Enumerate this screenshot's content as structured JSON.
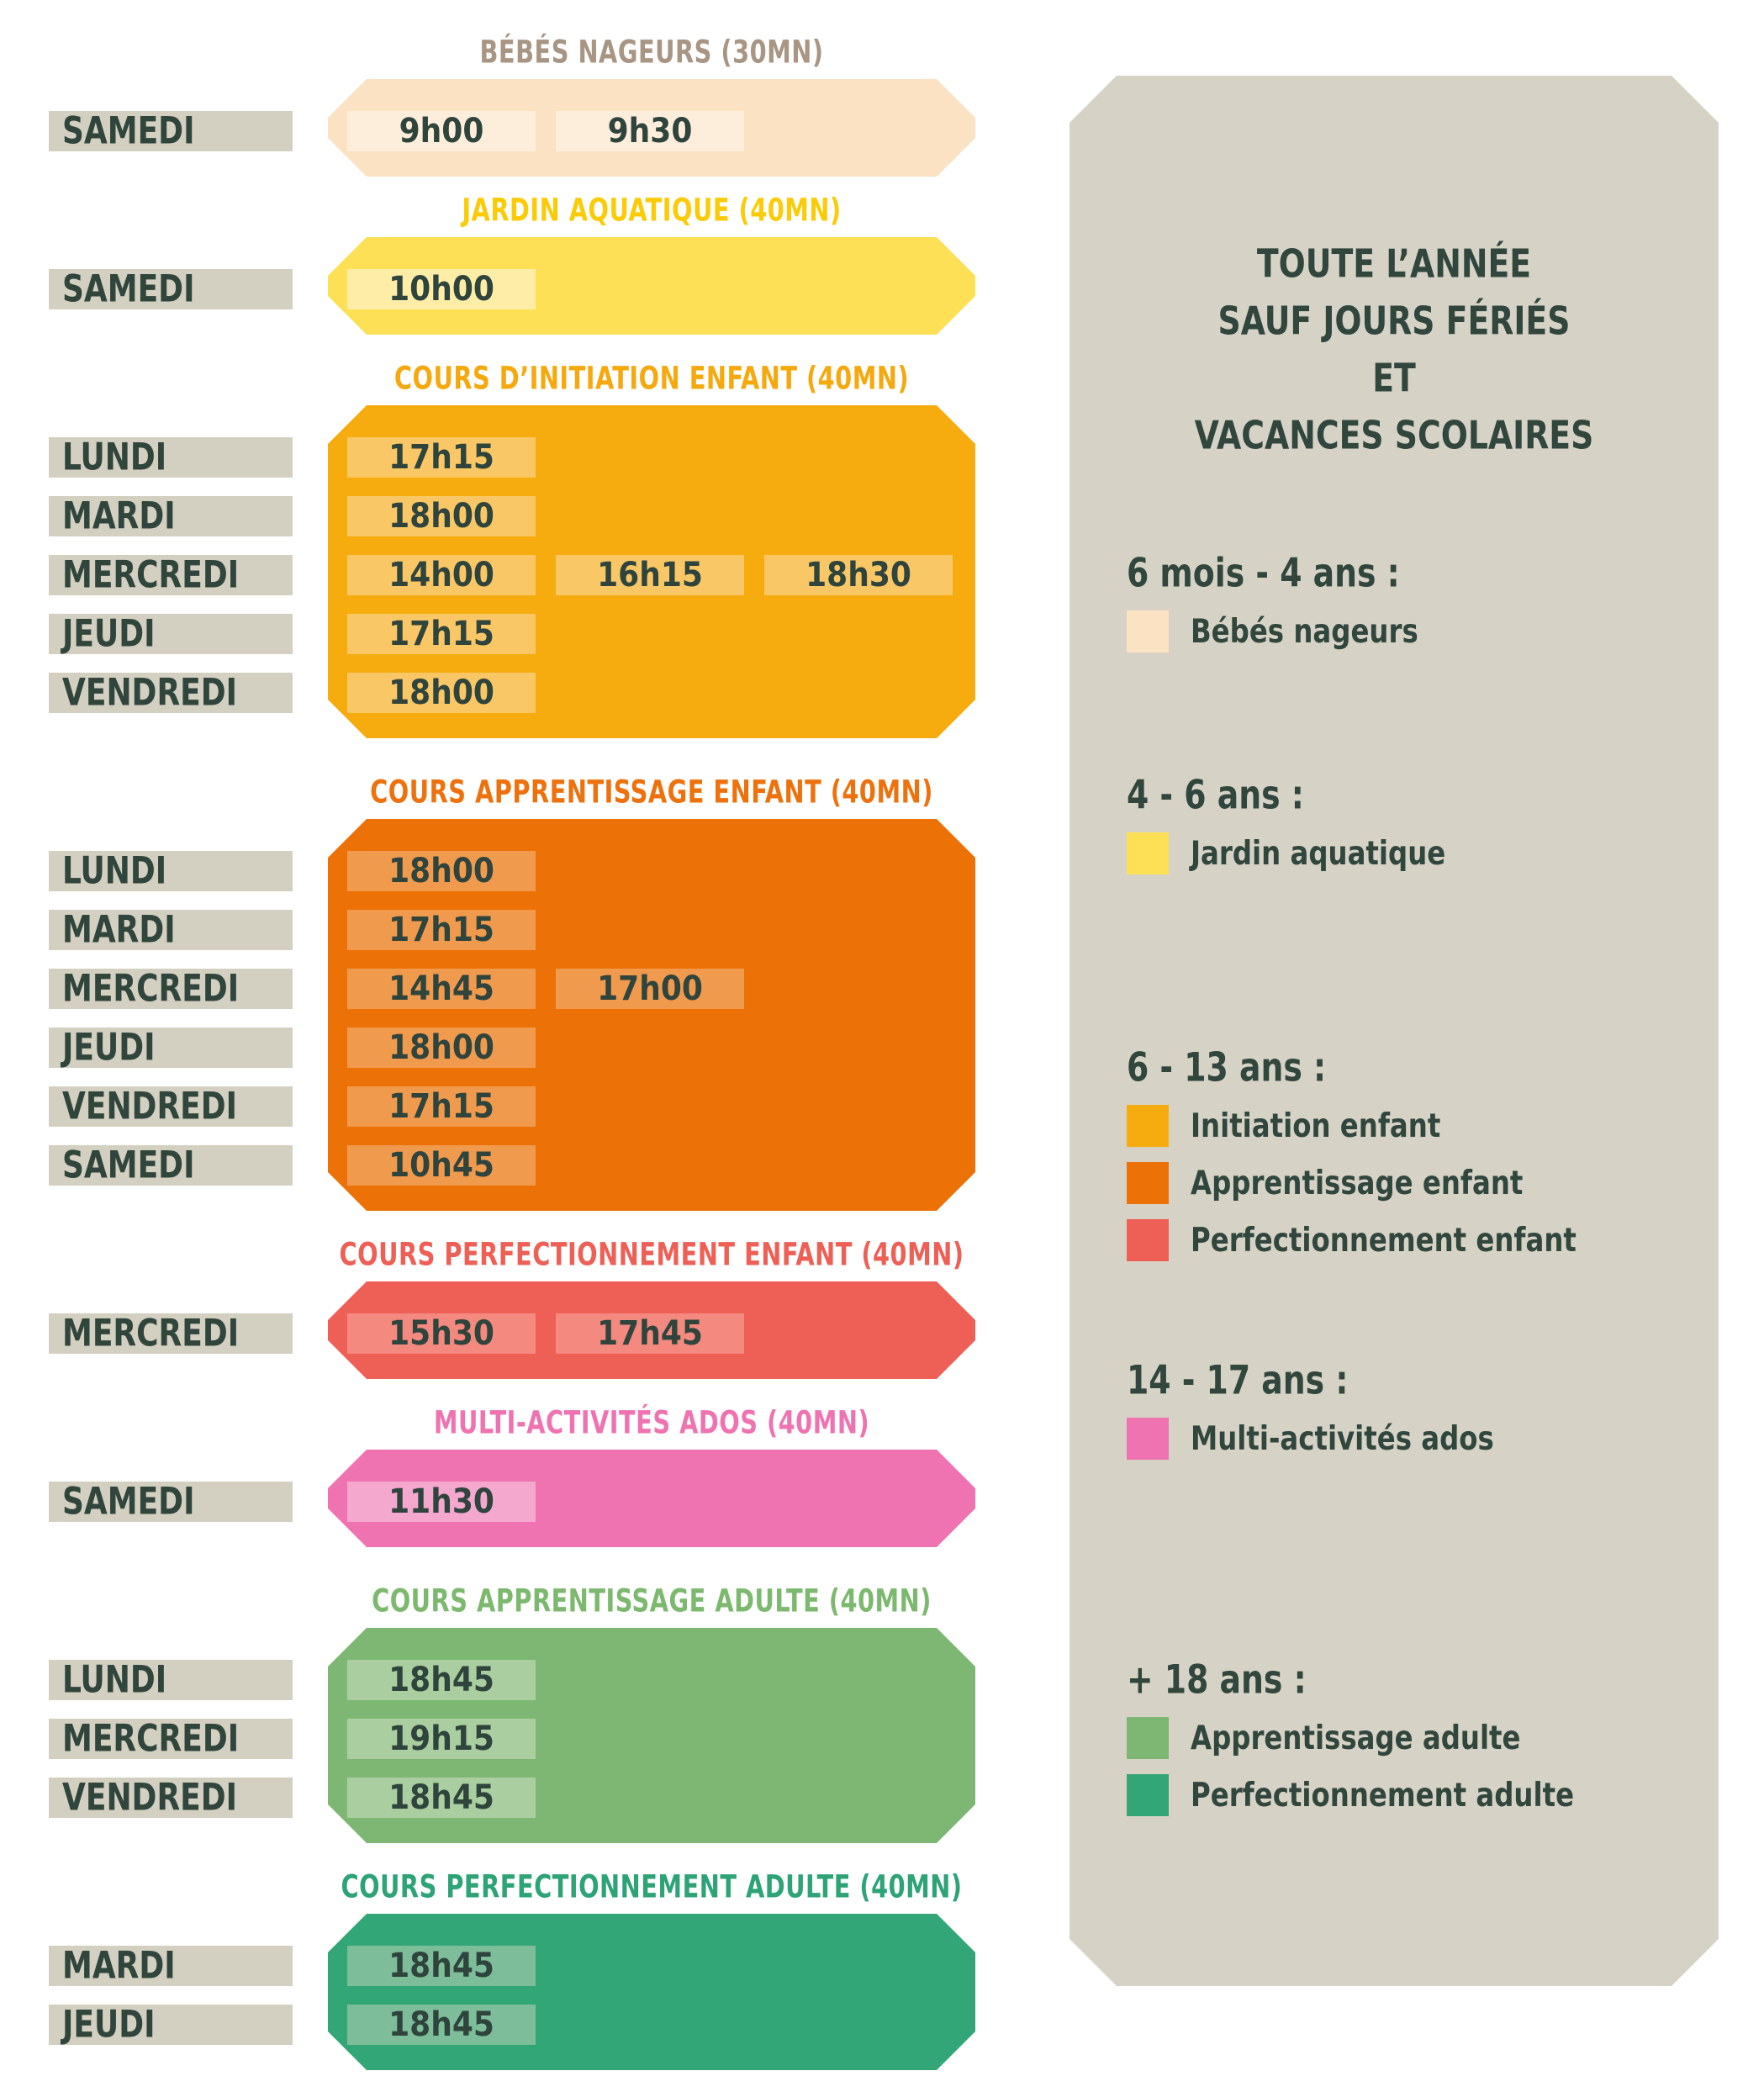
{
  "colors": {
    "page_background": "#FFFFFF",
    "dark_text": "#31463D",
    "day_label_background": "#D3CFC1",
    "panel_background": "#D6D3C6"
  },
  "sections": [
    {
      "id": "bebes-nageurs",
      "title": "BÉBÉS NAGEURS (30MN)",
      "title_color": "#A89584",
      "block_color": "#FBE2C3",
      "chip_color": "#FDEEDC",
      "rows": [
        {
          "day": "SAMEDI",
          "times": [
            "9h00",
            "9h30"
          ]
        }
      ]
    },
    {
      "id": "jardin-aquatique",
      "title": "JARDIN AQUATIQUE (40MN)",
      "title_color": "#FBCB08",
      "block_color": "#FDE055",
      "chip_color": "#FEEDA6",
      "rows": [
        {
          "day": "SAMEDI",
          "times": [
            "10h00"
          ]
        }
      ]
    },
    {
      "id": "initiation-enfant",
      "title": "COURS D’INITIATION ENFANT (40MN)",
      "title_color": "#F5A90E",
      "block_color": "#F6AC0E",
      "chip_color": "#F9C765",
      "rows": [
        {
          "day": "LUNDI",
          "times": [
            "17h15"
          ]
        },
        {
          "day": "MARDI",
          "times": [
            "18h00"
          ]
        },
        {
          "day": "MERCREDI",
          "times": [
            "14h00",
            "16h15",
            "18h30"
          ]
        },
        {
          "day": "JEUDI",
          "times": [
            "17h15"
          ]
        },
        {
          "day": "VENDREDI",
          "times": [
            "18h00"
          ]
        }
      ]
    },
    {
      "id": "apprentissage-enfant",
      "title": "COURS APPRENTISSAGE ENFANT (40MN)",
      "title_color": "#ED720E",
      "block_color": "#EC7107",
      "chip_color": "#F09A4E",
      "rows": [
        {
          "day": "LUNDI",
          "times": [
            "18h00"
          ]
        },
        {
          "day": "MARDI",
          "times": [
            "17h15"
          ]
        },
        {
          "day": "MERCREDI",
          "times": [
            "14h45",
            "17h00"
          ]
        },
        {
          "day": "JEUDI",
          "times": [
            "18h00"
          ]
        },
        {
          "day": "VENDREDI",
          "times": [
            "17h15"
          ]
        },
        {
          "day": "SAMEDI",
          "times": [
            "10h45"
          ]
        }
      ]
    },
    {
      "id": "perfectionnement-enfant",
      "title": "COURS PERFECTIONNEMENT ENFANT (40MN)",
      "title_color": "#EE5F55",
      "block_color": "#EE5F55",
      "chip_color": "#F3897F",
      "rows": [
        {
          "day": "MERCREDI",
          "times": [
            "15h30",
            "17h45"
          ]
        }
      ]
    },
    {
      "id": "multi-activites-ados",
      "title": "MULTI-ACTIVITÉS ADOS (40MN)",
      "title_color": "#EF73B0",
      "block_color": "#EF73B0",
      "chip_color": "#F5A8CE",
      "rows": [
        {
          "day": "SAMEDI",
          "times": [
            "11h30"
          ]
        }
      ]
    },
    {
      "id": "apprentissage-adulte",
      "title": "COURS APPRENTISSAGE ADULTE (40MN)",
      "title_color": "#7CB96F",
      "block_color": "#7EB773",
      "chip_color": "#ABCEA0",
      "rows": [
        {
          "day": "LUNDI",
          "times": [
            "18h45"
          ]
        },
        {
          "day": "MERCREDI",
          "times": [
            "19h15"
          ]
        },
        {
          "day": "VENDREDI",
          "times": [
            "18h45"
          ]
        }
      ]
    },
    {
      "id": "perfectionnement-adulte",
      "title": "COURS PERFECTIONNEMENT ADULTE (40MN)",
      "title_color": "#2DA377",
      "block_color": "#33A678",
      "chip_color": "#7DBD99",
      "rows": [
        {
          "day": "MARDI",
          "times": [
            "18h45"
          ]
        },
        {
          "day": "JEUDI",
          "times": [
            "18h45"
          ]
        }
      ]
    }
  ],
  "panel": {
    "title_lines": [
      "TOUTE L’ANNÉE",
      "SAUF JOURS FÉRIÉS",
      "ET",
      "VACANCES SCOLAIRES"
    ],
    "legend_groups": [
      {
        "heading": "6 mois - 4 ans :",
        "items": [
          {
            "label": "Bébés nageurs",
            "color": "#FBE2C3"
          }
        ]
      },
      {
        "heading": "4 - 6 ans :",
        "items": [
          {
            "label": "Jardin aquatique",
            "color": "#FDE055"
          }
        ]
      },
      {
        "heading": "6 - 13 ans :",
        "items": [
          {
            "label": "Initiation enfant",
            "color": "#F6AC0E"
          },
          {
            "label": "Apprentissage enfant",
            "color": "#EC7107"
          },
          {
            "label": "Perfectionnement enfant",
            "color": "#EE5F55"
          }
        ]
      },
      {
        "heading": "14 - 17 ans :",
        "items": [
          {
            "label": "Multi-activités ados",
            "color": "#EF73B0"
          }
        ]
      },
      {
        "heading": "+ 18 ans :",
        "items": [
          {
            "label": "Apprentissage adulte",
            "color": "#7EB773"
          },
          {
            "label": "Perfectionnement adulte",
            "color": "#33A678"
          }
        ]
      }
    ]
  }
}
